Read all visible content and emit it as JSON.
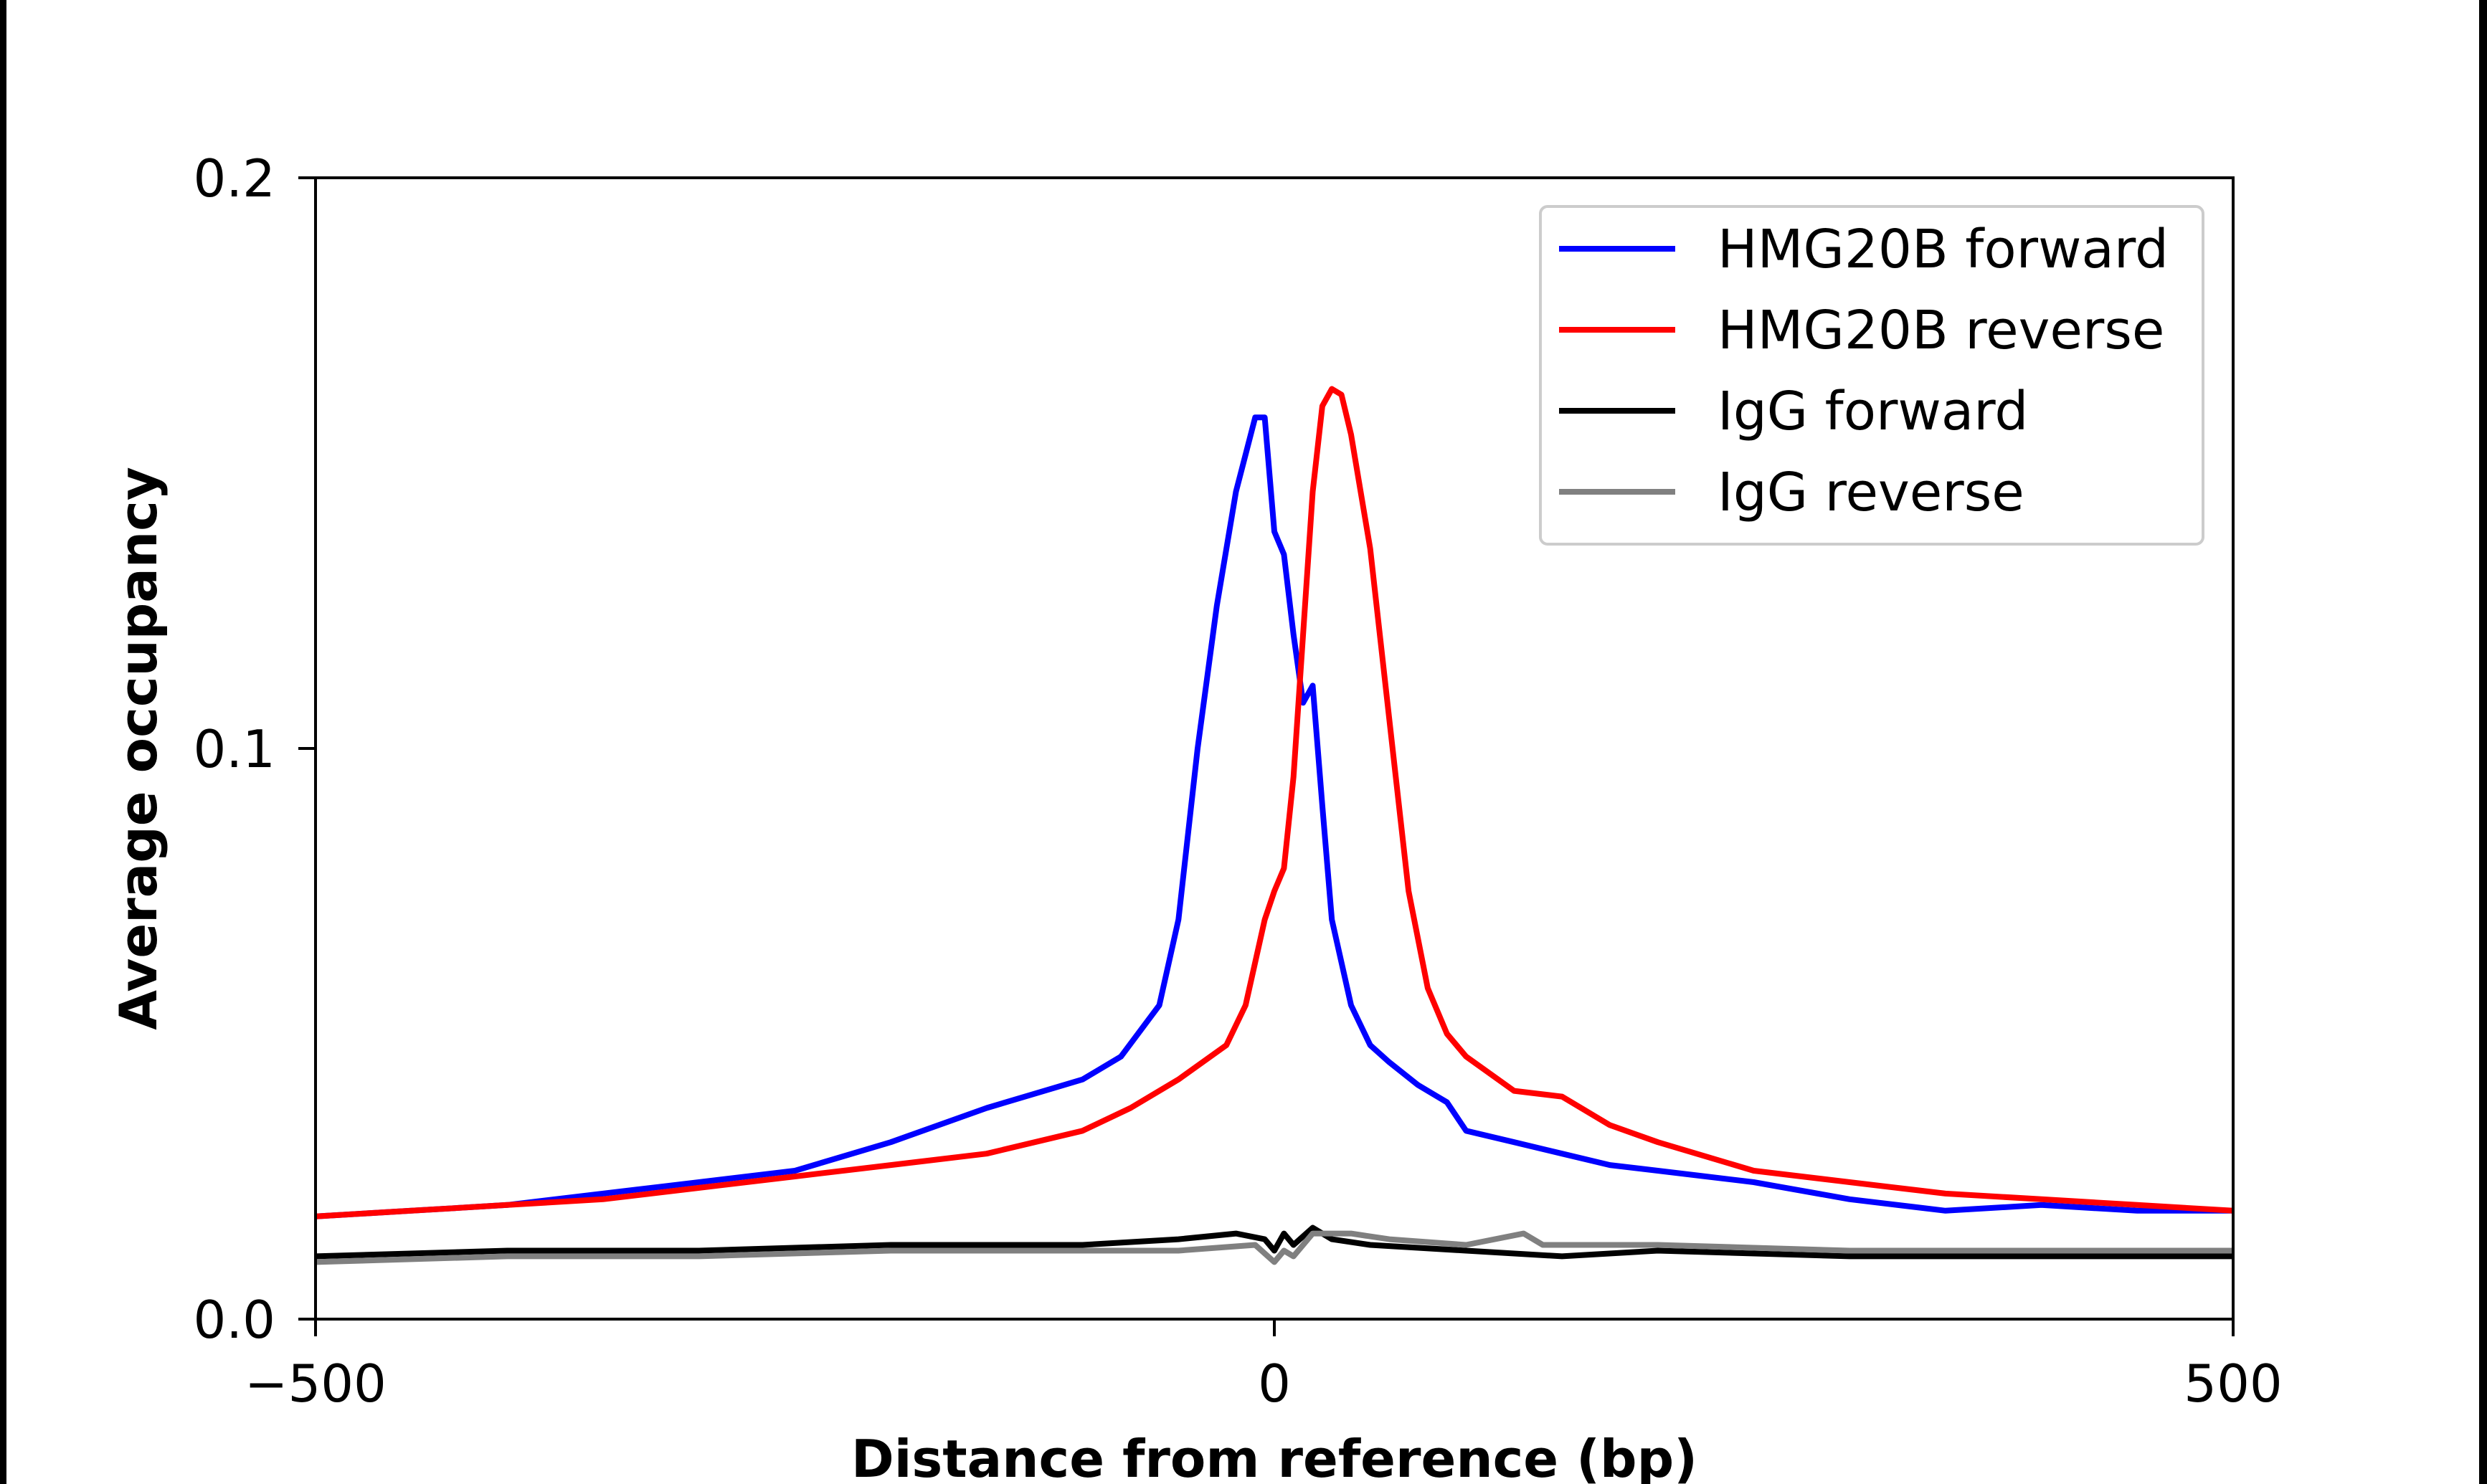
{
  "chart_data": {
    "type": "line",
    "xlabel": "Distance from reference (bp)",
    "ylabel": "Average occupancy",
    "xlim": [
      -500,
      500
    ],
    "ylim": [
      0.0,
      0.2
    ],
    "xticks": [
      "−500",
      "0",
      "500"
    ],
    "xtick_values": [
      -500,
      0,
      500
    ],
    "yticks": [
      "0.0",
      "0.1",
      "0.2"
    ],
    "ytick_values": [
      0.0,
      0.1,
      0.2
    ],
    "grid": false,
    "legend_position": "top-right",
    "series": [
      {
        "name": "HMG20B forward",
        "color": "#0000ff",
        "x": [
          -500,
          -450,
          -400,
          -350,
          -300,
          -250,
          -200,
          -150,
          -100,
          -80,
          -60,
          -50,
          -40,
          -30,
          -20,
          -10,
          -5,
          0,
          5,
          10,
          15,
          20,
          25,
          30,
          40,
          50,
          60,
          75,
          90,
          100,
          125,
          150,
          175,
          200,
          225,
          250,
          300,
          350,
          400,
          450,
          500
        ],
        "y": [
          0.018,
          0.019,
          0.02,
          0.022,
          0.024,
          0.026,
          0.031,
          0.037,
          0.042,
          0.046,
          0.055,
          0.07,
          0.1,
          0.125,
          0.145,
          0.158,
          0.158,
          0.138,
          0.134,
          0.12,
          0.108,
          0.111,
          0.09,
          0.07,
          0.055,
          0.048,
          0.045,
          0.041,
          0.038,
          0.033,
          0.031,
          0.029,
          0.027,
          0.026,
          0.025,
          0.024,
          0.021,
          0.019,
          0.02,
          0.019,
          0.019
        ]
      },
      {
        "name": "HMG20B reverse",
        "color": "#ff0000",
        "x": [
          -500,
          -450,
          -400,
          -350,
          -300,
          -250,
          -200,
          -150,
          -100,
          -75,
          -50,
          -25,
          -15,
          -5,
          0,
          5,
          10,
          15,
          20,
          25,
          30,
          35,
          40,
          50,
          60,
          70,
          80,
          90,
          100,
          125,
          150,
          175,
          200,
          250,
          300,
          350,
          400,
          450,
          500
        ],
        "y": [
          0.018,
          0.019,
          0.02,
          0.021,
          0.023,
          0.025,
          0.027,
          0.029,
          0.033,
          0.037,
          0.042,
          0.048,
          0.055,
          0.07,
          0.075,
          0.079,
          0.095,
          0.12,
          0.145,
          0.16,
          0.163,
          0.162,
          0.155,
          0.135,
          0.105,
          0.075,
          0.058,
          0.05,
          0.046,
          0.04,
          0.039,
          0.034,
          0.031,
          0.026,
          0.024,
          0.022,
          0.021,
          0.02,
          0.019
        ]
      },
      {
        "name": "IgG forward",
        "color": "#000000",
        "x": [
          -500,
          -400,
          -300,
          -200,
          -100,
          -50,
          -20,
          -5,
          0,
          5,
          10,
          20,
          30,
          50,
          100,
          150,
          200,
          300,
          400,
          500
        ],
        "y": [
          0.011,
          0.012,
          0.012,
          0.013,
          0.013,
          0.014,
          0.015,
          0.014,
          0.012,
          0.015,
          0.013,
          0.016,
          0.014,
          0.013,
          0.012,
          0.011,
          0.012,
          0.011,
          0.011,
          0.011
        ]
      },
      {
        "name": "IgG reverse",
        "color": "#808080",
        "x": [
          -500,
          -400,
          -300,
          -200,
          -100,
          -50,
          -10,
          0,
          5,
          10,
          20,
          40,
          60,
          100,
          130,
          140,
          200,
          300,
          400,
          500
        ],
        "y": [
          0.01,
          0.011,
          0.011,
          0.012,
          0.012,
          0.012,
          0.013,
          0.01,
          0.012,
          0.011,
          0.015,
          0.015,
          0.014,
          0.013,
          0.015,
          0.013,
          0.013,
          0.012,
          0.012,
          0.012
        ]
      }
    ]
  }
}
